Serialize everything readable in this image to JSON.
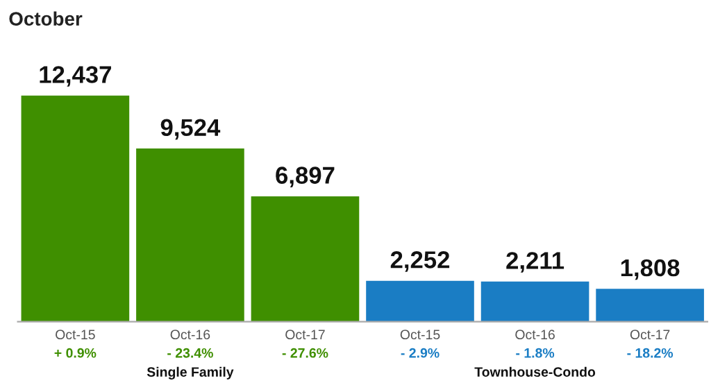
{
  "chart_data": {
    "type": "bar",
    "title": "October",
    "categories": [
      "Oct-15",
      "Oct-16",
      "Oct-17",
      "Oct-15",
      "Oct-16",
      "Oct-17"
    ],
    "values": [
      12437,
      9524,
      6897,
      2252,
      2211,
      1808
    ],
    "colors": [
      "#3f8f00",
      "#3f8f00",
      "#3f8f00",
      "#1a7dc4",
      "#1a7dc4",
      "#1a7dc4"
    ],
    "value_labels": [
      "12,437",
      "9,524",
      "6,897",
      "2,252",
      "2,211",
      "1,808"
    ],
    "annotations": [
      "+ 0.9%",
      "- 23.4%",
      "- 27.6%",
      "- 2.9%",
      "- 1.8%",
      "- 18.2%",
      "Single Family",
      "Townhouse-Condo"
    ],
    "grid": false,
    "legend": false
  }
}
